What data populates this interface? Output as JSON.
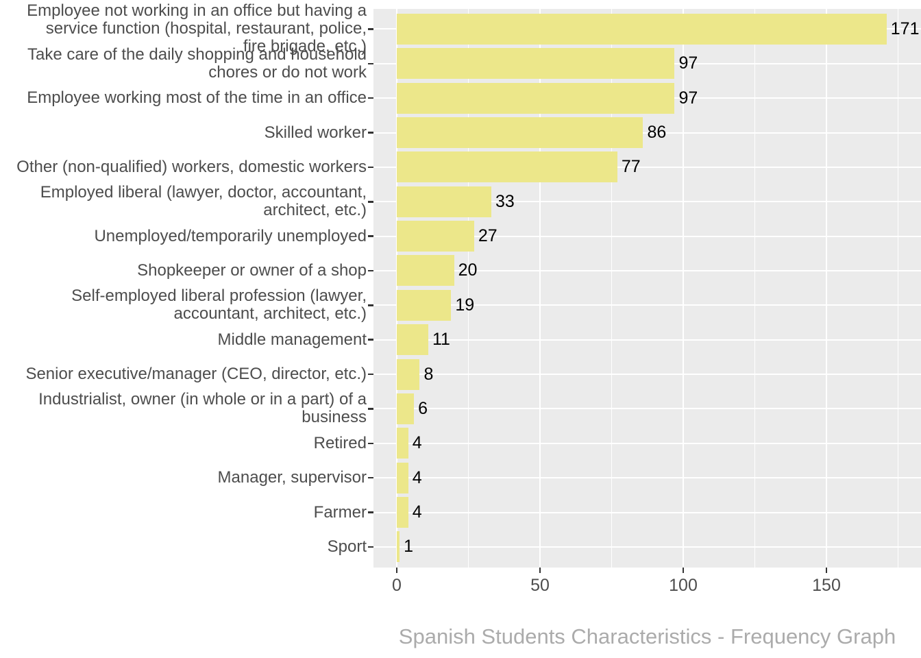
{
  "chart_data": {
    "type": "bar",
    "orientation": "horizontal",
    "title": "Spanish Students Characteristics - Frequency Graph",
    "categories": [
      "Employee not working in an office but having a\nservice function (hospital, restaurant, police,\nfire brigade, etc.)",
      "Take care of the daily shopping and household\nchores or do not work",
      "Employee working most of the time in an office",
      "Skilled worker",
      "Other (non-qualified) workers, domestic workers",
      "Employed liberal (lawyer, doctor, accountant,\narchitect, etc.)",
      "Unemployed/temporarily unemployed",
      "Shopkeeper or owner of a shop",
      "Self-employed liberal profession (lawyer,\naccountant, architect, etc.)",
      "Middle management",
      "Senior executive/manager (CEO, director, etc.)",
      "Industrialist, owner (in whole or in a part) of a\nbusiness",
      "Retired",
      "Manager, supervisor",
      "Farmer",
      "Sport"
    ],
    "values": [
      171,
      97,
      97,
      86,
      77,
      33,
      27,
      20,
      19,
      11,
      8,
      6,
      4,
      4,
      4,
      1
    ],
    "value_labels": [
      "171",
      "97",
      "97",
      "86",
      "77",
      "33",
      "27",
      "20",
      "19",
      "11",
      "8",
      "6",
      "4",
      "4",
      "4",
      "1"
    ],
    "xlabel": "",
    "ylabel": "",
    "x_ticks": [
      0,
      50,
      100,
      150
    ],
    "x_tick_labels": [
      "0",
      "50",
      "100",
      "150"
    ],
    "x_minor_ticks": [
      25,
      75,
      125,
      175
    ],
    "x_range": [
      -8.1,
      183
    ],
    "grid": "on",
    "legend": "none",
    "colors": {
      "bar_fill": "#ECE78A",
      "panel_background": "#EBEBEB",
      "gridline": "#FFFFFF",
      "axis_text": "#4D4D4D",
      "value_label_text": "#000000",
      "tick_mark": "#333333",
      "title_text": "#ABABAB",
      "figure_background": "#FFFFFF"
    }
  }
}
